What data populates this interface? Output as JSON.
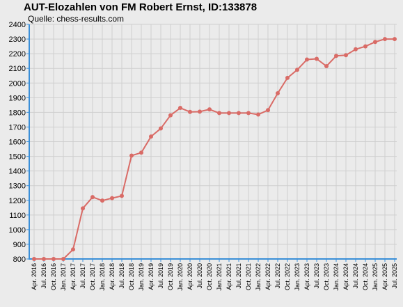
{
  "chart_data": {
    "type": "line",
    "title": "AUT-Elozahlen von FM Robert Ernst, ID:133878",
    "subtitle": "Quelle: chess-results.com",
    "xlabel": "",
    "ylabel": "",
    "ylim": [
      800,
      2400
    ],
    "yticks": [
      800,
      900,
      1000,
      1100,
      1200,
      1300,
      1400,
      1500,
      1600,
      1700,
      1800,
      1900,
      2000,
      2100,
      2200,
      2300,
      2400
    ],
    "grid": true,
    "categories": [
      "Apr. 2016",
      "Jul. 2016",
      "Oct. 2016",
      "Jan. 2017",
      "Apr. 2017",
      "Jul. 2017",
      "Oct. 2017",
      "Jan. 2018",
      "Apr. 2018",
      "Jul. 2018",
      "Oct. 2018",
      "Jan. 2019",
      "Apr. 2019",
      "Jul. 2019",
      "Oct. 2019",
      "Jan. 2020",
      "Apr. 2020",
      "Jul. 2020",
      "Oct. 2020",
      "Jan. 2021",
      "Apr. 2021",
      "Jul. 2021",
      "Oct. 2021",
      "Jan. 2022",
      "Apr. 2022",
      "Jul. 2022",
      "Oct. 2022",
      "Jan. 2023",
      "Apr. 2023",
      "Jul. 2023",
      "Oct. 2023",
      "Jan. 2024",
      "Apr. 2024",
      "Jul. 2024",
      "Oct. 2024",
      "Jan. 2025",
      "Apr. 2025",
      "Jul. 2025"
    ],
    "series": [
      {
        "values": [
          800,
          800,
          800,
          800,
          865,
          1145,
          1222,
          1198,
          1215,
          1230,
          1505,
          1525,
          1635,
          1690,
          1780,
          1830,
          1803,
          1805,
          1820,
          1795,
          1795,
          1795,
          1795,
          1785,
          1815,
          1930,
          2035,
          2090,
          2160,
          2165,
          2115,
          2185,
          2190,
          2230,
          2250,
          2280,
          2300,
          2300
        ],
        "color": "#d96b66"
      }
    ],
    "colors": {
      "line": "#d96b66",
      "axis": "#3a8fd8",
      "grid": "#cfcfcf",
      "background": "#ebebeb"
    }
  }
}
